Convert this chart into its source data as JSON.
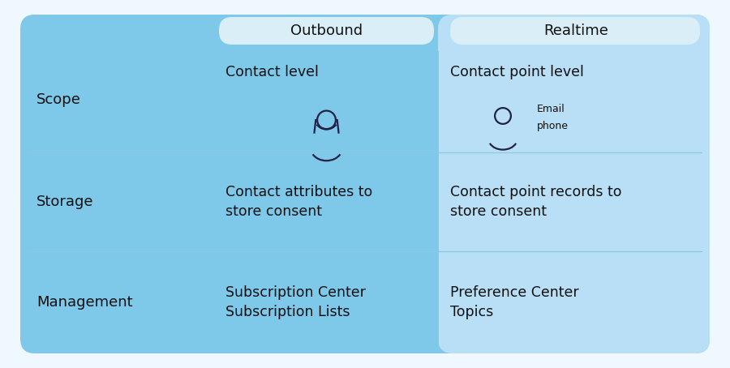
{
  "bg_color": "#f0f8ff",
  "main_bg": "#7ec8ea",
  "realtime_bg": "#b8dff5",
  "header_pill_color": "#daeef8",
  "divider_color": "#8cc8e0",
  "header_outbound": "Outbound",
  "header_realtime": "Realtime",
  "rows": [
    {
      "label": "Scope",
      "outbound": "Contact level",
      "realtime": "Contact point level",
      "has_icons": true
    },
    {
      "label": "Storage",
      "outbound": "Contact attributes to\nstore consent",
      "realtime": "Contact point records to\nstore consent",
      "has_icons": false
    },
    {
      "label": "Management",
      "outbound": "Subscription Center\nSubscription Lists",
      "realtime": "Preference Center\nTopics",
      "has_icons": false
    }
  ],
  "text_color": "#111111",
  "label_fontsize": 13,
  "header_fontsize": 13,
  "cell_fontsize": 12.5,
  "icon_color": "#222244"
}
